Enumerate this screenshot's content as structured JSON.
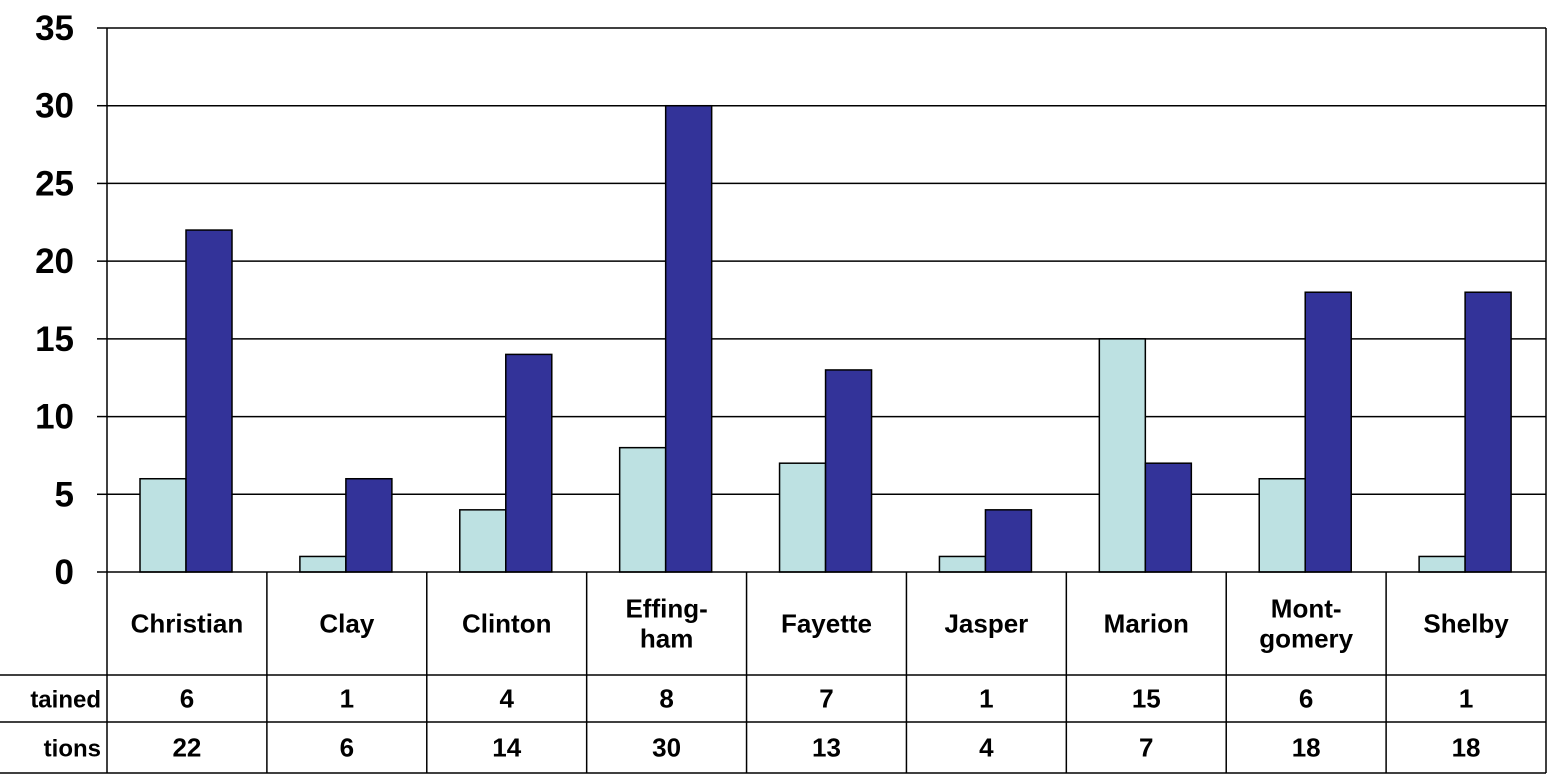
{
  "chart_data": {
    "type": "bar",
    "categories": [
      [
        "Christian"
      ],
      [
        "Clay"
      ],
      [
        "Clinton"
      ],
      [
        "Effing-",
        "ham"
      ],
      [
        "Fayette"
      ],
      [
        "Jasper"
      ],
      [
        "Marion"
      ],
      [
        "Mont-",
        "gomery"
      ],
      [
        "Shelby"
      ]
    ],
    "series": [
      {
        "name": "tained",
        "color": "#bde1e2",
        "values": [
          6,
          1,
          4,
          8,
          7,
          1,
          15,
          6,
          1
        ]
      },
      {
        "name": "tions",
        "color": "#333399",
        "values": [
          22,
          6,
          14,
          30,
          13,
          4,
          7,
          18,
          18
        ]
      }
    ],
    "yticks": [
      "0",
      "5",
      "10",
      "15",
      "20",
      "25",
      "30",
      "35"
    ],
    "ylim": [
      0,
      35
    ],
    "grid": true,
    "legend": "data-table-below"
  }
}
